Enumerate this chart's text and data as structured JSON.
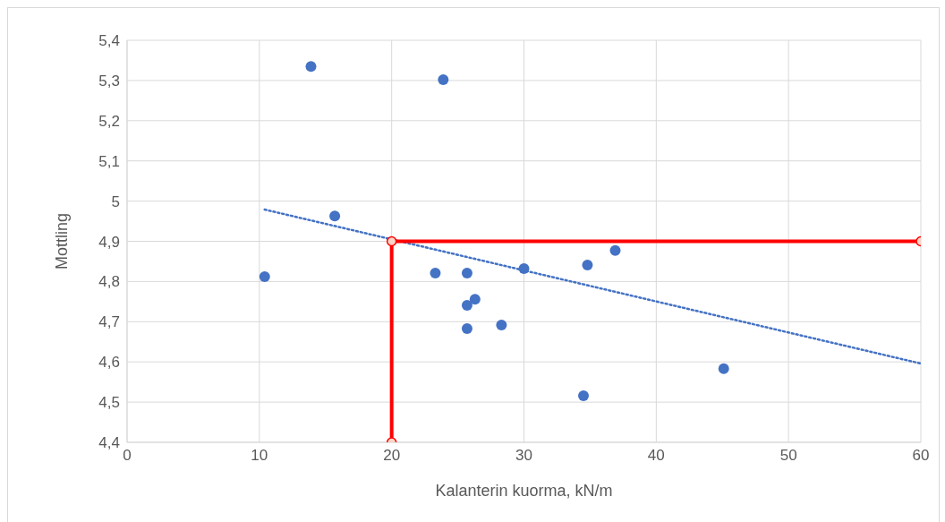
{
  "chart_data": {
    "type": "scatter",
    "xlabel": "Kalanterin kuorma, kN/m",
    "ylabel": "Mottling",
    "xlim": [
      0,
      60
    ],
    "xticks": [
      0,
      10,
      20,
      30,
      40,
      50,
      60
    ],
    "ylim": [
      4.4,
      5.4
    ],
    "yticks": [
      {
        "value": 4.4,
        "label": "4,4"
      },
      {
        "value": 4.5,
        "label": "4,5"
      },
      {
        "value": 4.6,
        "label": "4,6"
      },
      {
        "value": 4.7,
        "label": "4,7"
      },
      {
        "value": 4.8,
        "label": "4,8"
      },
      {
        "value": 4.9,
        "label": "4,9"
      },
      {
        "value": 5,
        "label": "5"
      },
      {
        "value": 5.1,
        "label": "5,1"
      },
      {
        "value": 5.2,
        "label": "5,2"
      },
      {
        "value": 5.3,
        "label": "5,3"
      },
      {
        "value": 5.4,
        "label": "5,4"
      }
    ],
    "grid": true,
    "legend": false,
    "series": [
      {
        "color": "#4472c4",
        "marker": "circle",
        "x": [
          13.9,
          23.9,
          15.7,
          10.4,
          23.3,
          25.7,
          30.0,
          34.8,
          36.9,
          26.3,
          25.7,
          25.7,
          28.3,
          34.5,
          45.1
        ],
        "values": [
          5.335,
          5.302,
          4.963,
          4.812,
          4.821,
          4.821,
          4.832,
          4.841,
          4.877,
          4.756,
          4.741,
          4.683,
          4.692,
          4.516,
          4.583
        ]
      },
      {
        "type": "line",
        "color": "#4472c4",
        "marker": "none",
        "line_style": "dotted",
        "x": [
          10.4,
          60
        ],
        "values": [
          4.979,
          4.596
        ]
      },
      {
        "type": "line",
        "color": "#ff0000",
        "marker": "circle",
        "line_style": "solid",
        "x": [
          20,
          20,
          60
        ],
        "values": [
          4.4,
          4.9,
          4.9
        ]
      }
    ]
  }
}
